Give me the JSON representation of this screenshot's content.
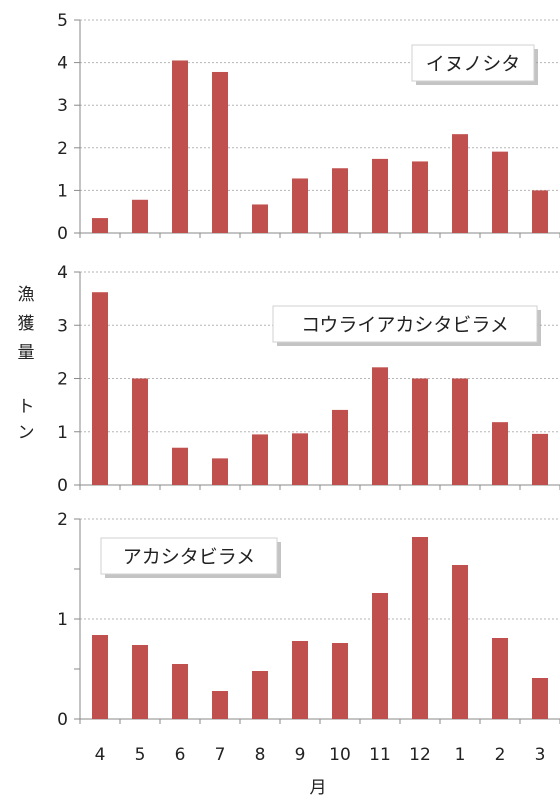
{
  "chart_data": {
    "type": "bar",
    "categories": [
      "4",
      "5",
      "6",
      "7",
      "8",
      "9",
      "10",
      "11",
      "12",
      "1",
      "2",
      "3"
    ],
    "xlabel": "月",
    "ylabel": "漁獲量 トン",
    "ylabel_chars": [
      "漁",
      "獲",
      "量",
      "ト",
      "ン"
    ],
    "bar_color": "#c0504d",
    "grid": true,
    "panels": [
      {
        "title": "イヌノシタ",
        "legend_position": "top-right",
        "ylim": [
          0,
          5
        ],
        "yticks": [
          0,
          1,
          2,
          3,
          4,
          5
        ],
        "values": [
          0.35,
          0.78,
          4.05,
          3.78,
          0.67,
          1.28,
          1.52,
          1.74,
          1.68,
          2.32,
          1.91,
          1.0
        ]
      },
      {
        "title": "コウライアカシタビラメ",
        "legend_position": "top-right",
        "ylim": [
          0,
          4
        ],
        "yticks": [
          0,
          1,
          2,
          3,
          4
        ],
        "values": [
          3.62,
          2.0,
          0.7,
          0.5,
          0.95,
          0.97,
          1.41,
          2.21,
          2.0,
          2.0,
          1.18,
          0.96
        ]
      },
      {
        "title": "アカシタビラメ",
        "legend_position": "top-left",
        "ylim": [
          0,
          2
        ],
        "yticks": [
          0,
          1,
          2
        ],
        "yticks_labeled": [
          0,
          1,
          2
        ],
        "minor_ticks": [
          0.5,
          1.5
        ],
        "values": [
          0.84,
          0.74,
          0.55,
          0.28,
          0.48,
          0.78,
          0.76,
          1.26,
          1.82,
          1.54,
          0.81,
          0.41
        ]
      }
    ]
  }
}
